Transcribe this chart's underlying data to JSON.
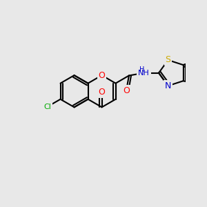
{
  "background_color": "#e8e8e8",
  "bond_color": "#000000",
  "bond_width": 1.5,
  "figsize": [
    3.0,
    3.0
  ],
  "dpi": 100,
  "colors": {
    "O": "#ff0000",
    "N": "#0000cc",
    "S": "#ccaa00",
    "Cl": "#00aa00",
    "F": "#cc00cc",
    "C": "#000000"
  },
  "fontsize": 9
}
